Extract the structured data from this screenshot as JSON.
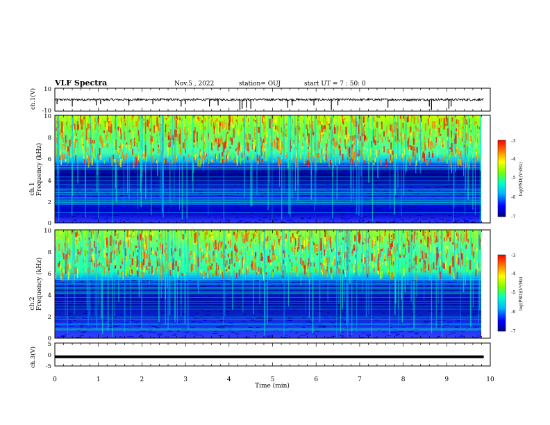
{
  "header": {
    "title": "VLF Spectra",
    "date": "Nov.5 , 2022",
    "station": "station= OUJ",
    "start_time": "start UT = 7 : 50: 0"
  },
  "chart_data": [
    {
      "type": "line",
      "panel": "ch1-waveform",
      "ylabel": "ch.1(V)",
      "ylim": [
        -10,
        10
      ],
      "yticks": [
        "10",
        "-10"
      ],
      "baseline_value": 0,
      "noise_amplitude": 1,
      "spike_times_min": [
        0.05,
        0.4,
        0.95,
        1.05,
        1.7,
        2.25,
        2.9,
        3.0,
        3.55,
        3.75,
        4.25,
        4.3,
        4.4,
        4.5,
        5.35,
        5.45,
        5.95,
        6.35,
        6.5,
        7.65,
        8.6,
        8.65,
        9.05,
        9.1
      ],
      "spike_values": [
        -4,
        -6,
        -5,
        -4,
        -5,
        -4,
        -6,
        -4,
        -6,
        -5,
        -9,
        -8,
        -7,
        -8,
        -7,
        -5,
        -5,
        -9,
        -5,
        -7,
        -6,
        -9,
        -8,
        -6
      ]
    },
    {
      "type": "heatmap",
      "panel": "ch1-spectrogram",
      "ylabel": "Frequency (kHz)",
      "channel_label": "ch.1",
      "ylim": [
        0,
        10
      ],
      "yticks": [
        "0",
        "2",
        "4",
        "6",
        "8",
        "10"
      ],
      "xlim": [
        0,
        10
      ],
      "colorbar": {
        "label": "log(PSD)(V²/Hz)",
        "ticks": [
          "-3",
          "-4",
          "-5",
          "-6",
          "-7"
        ],
        "range": [
          -7,
          -3
        ]
      },
      "cutoff_khz": 5.8,
      "high_band_level": -4.2,
      "low_band_level": -6.4,
      "colors": [
        "#00008c",
        "#0000ff",
        "#00b4ff",
        "#00ffc8",
        "#78ff00",
        "#ffff00",
        "#ff7800",
        "#ff0000"
      ]
    },
    {
      "type": "heatmap",
      "panel": "ch2-spectrogram",
      "ylabel": "Frequency (kHz)",
      "channel_label": "ch.2",
      "ylim": [
        0,
        10
      ],
      "yticks": [
        "0",
        "2",
        "4",
        "6",
        "8",
        "10"
      ],
      "xlim": [
        0,
        10
      ],
      "colorbar": {
        "label": "log(PSD)(V²/Hz)",
        "ticks": [
          "-3",
          "-4",
          "-5",
          "-6",
          "-7"
        ],
        "range": [
          -7,
          -3
        ]
      },
      "cutoff_khz": 6.0,
      "high_band_level": -4.6,
      "low_band_level": -6.0,
      "colors": [
        "#00008c",
        "#0000ff",
        "#00b4ff",
        "#00ffc8",
        "#78ff00",
        "#ffff00",
        "#ff7800",
        "#ff0000"
      ]
    },
    {
      "type": "line",
      "panel": "ch3-waveform",
      "ylabel": "ch.3(V)",
      "ylim": [
        -5,
        5
      ],
      "yticks": [
        "5",
        "0",
        "-5"
      ],
      "constant_value": -1,
      "xlabel": "Time (min)",
      "xlim": [
        0,
        10
      ],
      "xticks": [
        "0",
        "1",
        "2",
        "3",
        "4",
        "5",
        "6",
        "7",
        "8",
        "9",
        "10"
      ],
      "data_end_min": 9.85
    }
  ]
}
